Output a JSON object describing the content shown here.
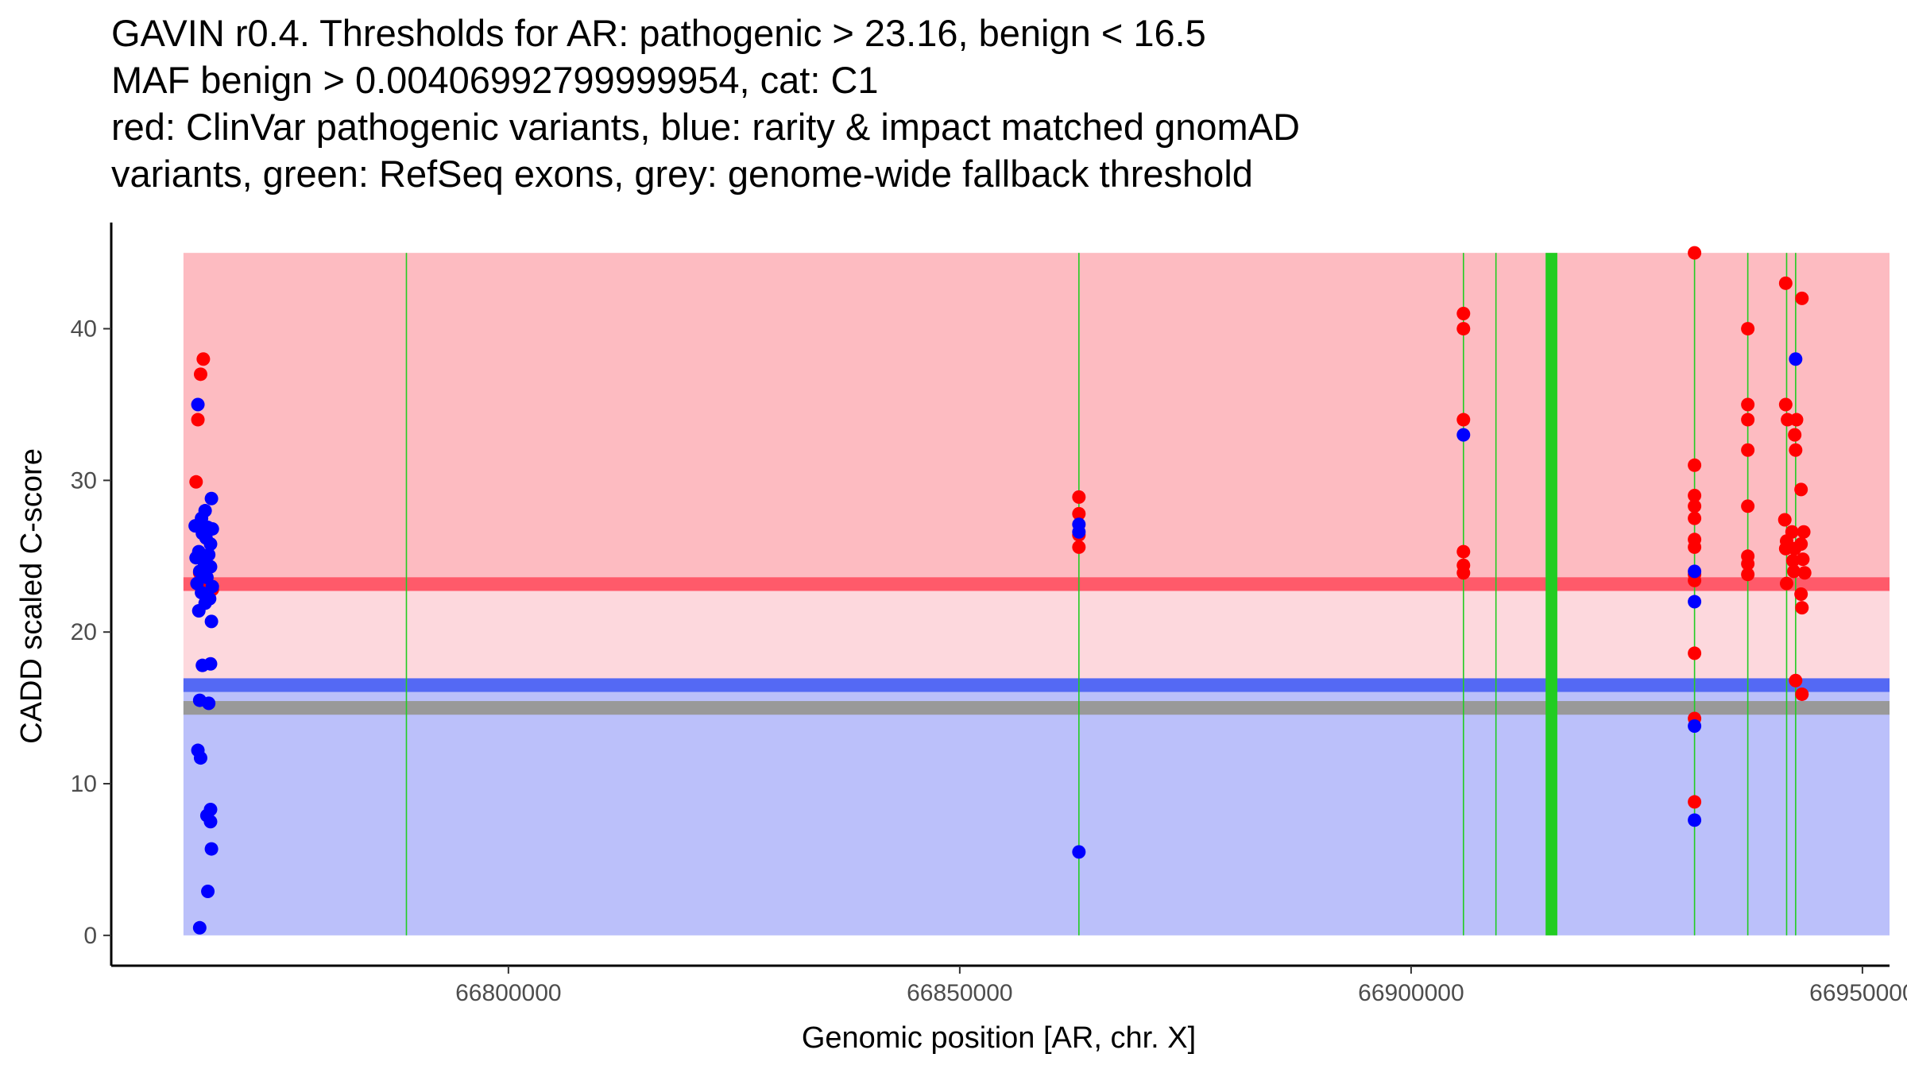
{
  "chart_data": {
    "type": "scatter",
    "title_lines": [
      "GAVIN r0.4. Thresholds for AR: pathogenic > 23.16, benign < 16.5",
      "MAF benign > 0.00406992799999954, cat: C1",
      "red: ClinVar pathogenic variants, blue: rarity & impact matched gnomAD",
      "variants, green: RefSeq exons, grey: genome-wide fallback threshold"
    ],
    "xlabel": "Genomic position [AR, chr. X]",
    "ylabel": "CADD scaled C-score",
    "xlim": [
      66756000,
      66953000
    ],
    "ylim": [
      -2,
      47
    ],
    "x_ticks": [
      {
        "value": 66800000,
        "label": "66800000"
      },
      {
        "value": 66850000,
        "label": "66850000"
      },
      {
        "value": 66900000,
        "label": "66900000"
      },
      {
        "value": 66950000,
        "label": "66950000"
      }
    ],
    "y_ticks": [
      {
        "value": 0,
        "label": "0"
      },
      {
        "value": 10,
        "label": "10"
      },
      {
        "value": 20,
        "label": "20"
      },
      {
        "value": 30,
        "label": "30"
      },
      {
        "value": 40,
        "label": "40"
      }
    ],
    "regions": [
      {
        "name": "pathogenic-zone",
        "x_from": 66764000,
        "x_to": 66953000,
        "y_from": 23.16,
        "y_to": 45,
        "color": "#FDBBC1"
      },
      {
        "name": "uncertain-zone",
        "x_from": 66764000,
        "x_to": 66953000,
        "y_from": 16.5,
        "y_to": 23.16,
        "color": "#FDD8DD"
      },
      {
        "name": "benign-zone",
        "x_from": 66764000,
        "x_to": 66953000,
        "y_from": 0,
        "y_to": 16.5,
        "color": "#BBC0FA"
      }
    ],
    "threshold_lines": [
      {
        "name": "pathogenic-threshold-line",
        "y": 23.16,
        "half_width": 0.45,
        "color": "#FF5A6A"
      },
      {
        "name": "benign-threshold-line",
        "y": 16.5,
        "half_width": 0.45,
        "color": "#5469F4"
      },
      {
        "name": "fallback-threshold-line",
        "y": 15.0,
        "half_width": 0.45,
        "color": "#999999"
      }
    ],
    "exons": [
      {
        "x_from": 66788700,
        "x_to": 66788700
      },
      {
        "x_from": 66863200,
        "x_to": 66863200
      },
      {
        "x_from": 66905800,
        "x_to": 66905800
      },
      {
        "x_from": 66909400,
        "x_to": 66909400
      },
      {
        "x_from": 66914900,
        "x_to": 66916200
      },
      {
        "x_from": 66931400,
        "x_to": 66931400
      },
      {
        "x_from": 66937300,
        "x_to": 66937300
      },
      {
        "x_from": 66941600,
        "x_to": 66941600
      },
      {
        "x_from": 66942600,
        "x_to": 66942600
      }
    ],
    "exon_color": "#22CC22",
    "series": [
      {
        "name": "ClinVar pathogenic variants",
        "color": "#FF0000",
        "points": [
          {
            "x": 66766200,
            "y": 38.0
          },
          {
            "x": 66765900,
            "y": 37.0
          },
          {
            "x": 66765600,
            "y": 34.0
          },
          {
            "x": 66765400,
            "y": 29.9
          },
          {
            "x": 66765800,
            "y": 23.9
          },
          {
            "x": 66766300,
            "y": 23.2
          },
          {
            "x": 66766700,
            "y": 22.9
          },
          {
            "x": 66767200,
            "y": 22.8
          },
          {
            "x": 66863200,
            "y": 28.9
          },
          {
            "x": 66863200,
            "y": 27.8
          },
          {
            "x": 66863200,
            "y": 26.4
          },
          {
            "x": 66863200,
            "y": 25.6
          },
          {
            "x": 66905800,
            "y": 41.0
          },
          {
            "x": 66905800,
            "y": 40.0
          },
          {
            "x": 66905800,
            "y": 34.0
          },
          {
            "x": 66905800,
            "y": 25.3
          },
          {
            "x": 66905800,
            "y": 24.4
          },
          {
            "x": 66905800,
            "y": 23.9
          },
          {
            "x": 66931400,
            "y": 45.0
          },
          {
            "x": 66931400,
            "y": 31.0
          },
          {
            "x": 66931400,
            "y": 29.0
          },
          {
            "x": 66931400,
            "y": 28.3
          },
          {
            "x": 66931400,
            "y": 27.5
          },
          {
            "x": 66931400,
            "y": 26.1
          },
          {
            "x": 66931400,
            "y": 25.6
          },
          {
            "x": 66931400,
            "y": 23.8
          },
          {
            "x": 66931400,
            "y": 23.4
          },
          {
            "x": 66931400,
            "y": 18.6
          },
          {
            "x": 66931400,
            "y": 14.3
          },
          {
            "x": 66931400,
            "y": 8.8
          },
          {
            "x": 66937300,
            "y": 40.0
          },
          {
            "x": 66937300,
            "y": 35.0
          },
          {
            "x": 66937300,
            "y": 34.0
          },
          {
            "x": 66937300,
            "y": 32.0
          },
          {
            "x": 66937300,
            "y": 28.3
          },
          {
            "x": 66937300,
            "y": 25.0
          },
          {
            "x": 66937300,
            "y": 24.5
          },
          {
            "x": 66937300,
            "y": 23.8
          },
          {
            "x": 66941500,
            "y": 43.0
          },
          {
            "x": 66941500,
            "y": 35.0
          },
          {
            "x": 66941700,
            "y": 34.0
          },
          {
            "x": 66942700,
            "y": 34.0
          },
          {
            "x": 66941400,
            "y": 27.4
          },
          {
            "x": 66941600,
            "y": 26.0
          },
          {
            "x": 66941500,
            "y": 25.5
          },
          {
            "x": 66941600,
            "y": 23.2
          },
          {
            "x": 66942500,
            "y": 33.0
          },
          {
            "x": 66942600,
            "y": 32.0
          },
          {
            "x": 66942200,
            "y": 26.6
          },
          {
            "x": 66942500,
            "y": 25.5
          },
          {
            "x": 66942300,
            "y": 24.7
          },
          {
            "x": 66942400,
            "y": 24.0
          },
          {
            "x": 66942600,
            "y": 16.8
          },
          {
            "x": 66943300,
            "y": 42.0
          },
          {
            "x": 66943200,
            "y": 29.4
          },
          {
            "x": 66943500,
            "y": 26.6
          },
          {
            "x": 66943200,
            "y": 25.8
          },
          {
            "x": 66943400,
            "y": 24.8
          },
          {
            "x": 66943600,
            "y": 23.9
          },
          {
            "x": 66943200,
            "y": 22.5
          },
          {
            "x": 66943300,
            "y": 21.6
          },
          {
            "x": 66943300,
            "y": 15.9
          }
        ]
      },
      {
        "name": "rarity & impact matched gnomAD variants",
        "color": "#0000FF",
        "points": [
          {
            "x": 66765600,
            "y": 35.0
          },
          {
            "x": 66767100,
            "y": 28.8
          },
          {
            "x": 66766400,
            "y": 28.0
          },
          {
            "x": 66766000,
            "y": 27.5
          },
          {
            "x": 66765300,
            "y": 27.0
          },
          {
            "x": 66766700,
            "y": 26.9
          },
          {
            "x": 66767200,
            "y": 26.8
          },
          {
            "x": 66766100,
            "y": 26.5
          },
          {
            "x": 66766500,
            "y": 26.2
          },
          {
            "x": 66767000,
            "y": 25.8
          },
          {
            "x": 66765700,
            "y": 25.3
          },
          {
            "x": 66766800,
            "y": 25.1
          },
          {
            "x": 66765400,
            "y": 24.9
          },
          {
            "x": 66766200,
            "y": 24.7
          },
          {
            "x": 66767000,
            "y": 24.3
          },
          {
            "x": 66765800,
            "y": 24.0
          },
          {
            "x": 66766600,
            "y": 23.6
          },
          {
            "x": 66765500,
            "y": 23.2
          },
          {
            "x": 66767200,
            "y": 23.0
          },
          {
            "x": 66766000,
            "y": 22.6
          },
          {
            "x": 66766900,
            "y": 22.2
          },
          {
            "x": 66766400,
            "y": 21.9
          },
          {
            "x": 66765700,
            "y": 21.4
          },
          {
            "x": 66767100,
            "y": 20.7
          },
          {
            "x": 66766100,
            "y": 17.8
          },
          {
            "x": 66767000,
            "y": 17.9
          },
          {
            "x": 66765800,
            "y": 15.5
          },
          {
            "x": 66766800,
            "y": 15.3
          },
          {
            "x": 66765600,
            "y": 12.2
          },
          {
            "x": 66765900,
            "y": 11.7
          },
          {
            "x": 66767000,
            "y": 8.3
          },
          {
            "x": 66766600,
            "y": 7.9
          },
          {
            "x": 66767000,
            "y": 7.5
          },
          {
            "x": 66767100,
            "y": 5.7
          },
          {
            "x": 66766700,
            "y": 2.9
          },
          {
            "x": 66765800,
            "y": 0.5
          },
          {
            "x": 66863200,
            "y": 27.1
          },
          {
            "x": 66863200,
            "y": 26.6
          },
          {
            "x": 66863200,
            "y": 5.5
          },
          {
            "x": 66905800,
            "y": 33.0
          },
          {
            "x": 66931400,
            "y": 24.0
          },
          {
            "x": 66931400,
            "y": 22.0
          },
          {
            "x": 66931400,
            "y": 13.8
          },
          {
            "x": 66931400,
            "y": 7.6
          },
          {
            "x": 66942600,
            "y": 38.0
          }
        ]
      }
    ]
  }
}
